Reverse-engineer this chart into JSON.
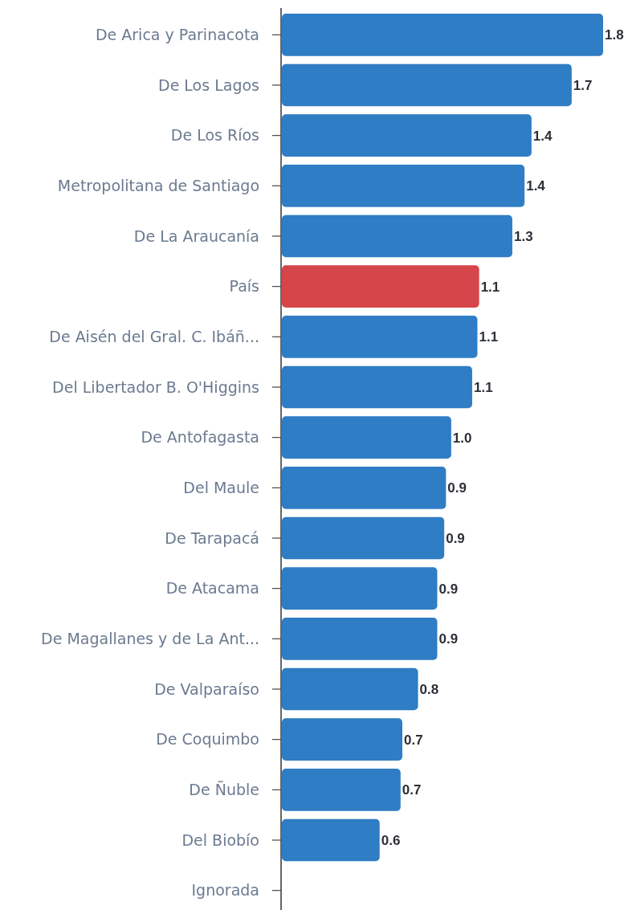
{
  "chart_data": {
    "type": "bar",
    "orientation": "horizontal",
    "categories": [
      "De Arica y Parinacota",
      "De Los Lagos",
      "De Los Ríos",
      "Metropolitana de Santiago",
      "De La Araucanía",
      "País",
      "De Aisén del Gral. C. Ibáñ...",
      "Del Libertador B. O'Higgins",
      "De Antofagasta",
      "Del Maule",
      "De Tarapacá",
      "De Atacama",
      "De Magallanes y de La Ant...",
      "De Valparaíso",
      "De Coquimbo",
      "De Ñuble",
      "Del Biobío",
      "Ignorada"
    ],
    "values": [
      1.84,
      1.66,
      1.43,
      1.39,
      1.32,
      1.13,
      1.12,
      1.09,
      0.97,
      0.94,
      0.93,
      0.89,
      0.89,
      0.78,
      0.69,
      0.68,
      0.56,
      null
    ],
    "value_labels": [
      "1.8",
      "1.7",
      "1.4",
      "1.4",
      "1.3",
      "1.1",
      "1.1",
      "1.1",
      "1.0",
      "0.9",
      "0.9",
      "0.9",
      "0.9",
      "0.8",
      "0.7",
      "0.7",
      "0.6",
      null
    ],
    "colors": [
      "#2f7dc4",
      "#2f7dc4",
      "#2f7dc4",
      "#2f7dc4",
      "#2f7dc4",
      "#d6454a",
      "#2f7dc4",
      "#2f7dc4",
      "#2f7dc4",
      "#2f7dc4",
      "#2f7dc4",
      "#2f7dc4",
      "#2f7dc4",
      "#2f7dc4",
      "#2f7dc4",
      "#2f7dc4",
      "#2f7dc4",
      null
    ]
  }
}
